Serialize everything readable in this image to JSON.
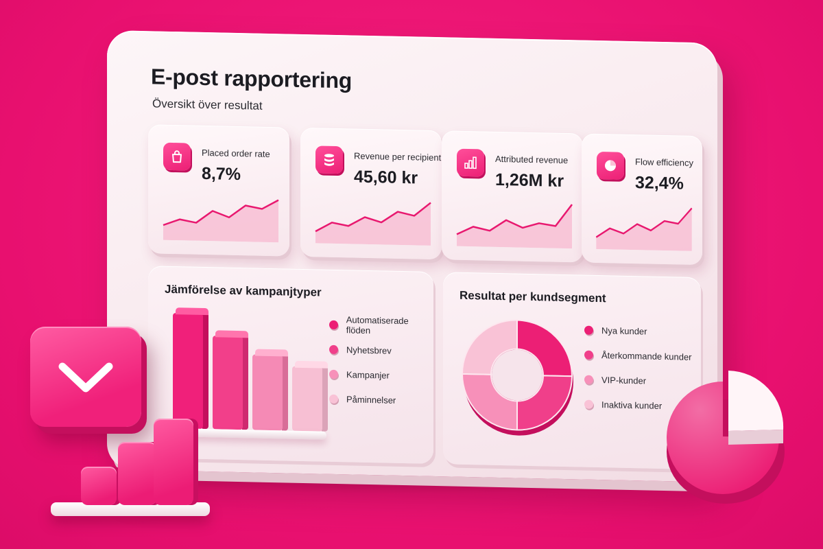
{
  "header": {
    "title": "E-post rapportering",
    "subtitle": "Översikt över resultat"
  },
  "kpis": [
    {
      "label": "Placed order rate",
      "value": "8,7%",
      "icon": "shopping-bag-icon",
      "trend": [
        2,
        3,
        2.5,
        4.5,
        3.5,
        5.5,
        5,
        6.5
      ]
    },
    {
      "label": "Revenue per recipient",
      "value": "45,60 kr",
      "icon": "database-icon",
      "trend": [
        1.5,
        3,
        2.5,
        4,
        3.2,
        5,
        4.4,
        6.6
      ]
    },
    {
      "label": "Attributed revenue",
      "value": "1,26M kr",
      "icon": "bar-chart-icon",
      "trend": [
        1.5,
        2.8,
        2.2,
        4,
        2.8,
        3.6,
        3.2,
        6.8
      ]
    },
    {
      "label": "Flow efficiency",
      "value": "32,4%",
      "icon": "pie-chart-icon",
      "trend": [
        1.5,
        3,
        2.2,
        3.8,
        2.8,
        4.4,
        4,
        6.6
      ]
    }
  ],
  "campaign_panel": {
    "title": "Jämförelse av kampanjtyper",
    "legend": [
      {
        "label": "Automatiserade flöden",
        "color": "#ec1f75"
      },
      {
        "label": "Nyhetsbrev",
        "color": "#f03f8a"
      },
      {
        "label": "Kampanjer",
        "color": "#f790b9"
      },
      {
        "label": "Påminnelser",
        "color": "#f9c2d6"
      }
    ]
  },
  "segment_panel": {
    "title": "Resultat per kundsegment",
    "legend": [
      {
        "label": "Nya kunder",
        "color": "#ec1f75"
      },
      {
        "label": "Återkommande kunder",
        "color": "#f03f8a"
      },
      {
        "label": "VIP-kunder",
        "color": "#f790b9"
      },
      {
        "label": "Inaktiva kunder",
        "color": "#f9c2d6"
      }
    ]
  },
  "chart_data": [
    {
      "type": "bar",
      "categories": [
        "Automatiserade flöden",
        "Nyhetsbrev",
        "Kampanjer",
        "Påminnelser"
      ],
      "values": [
        100,
        82,
        67,
        58
      ],
      "title": "Jämförelse av kampanjtyper",
      "xlabel": "",
      "ylabel": "",
      "ylim": [
        0,
        100
      ]
    },
    {
      "type": "pie",
      "categories": [
        "Nya kunder",
        "Återkommande kunder",
        "VIP-kunder",
        "Inaktiva kunder"
      ],
      "values": [
        25,
        25,
        25,
        25
      ],
      "title": "Resultat per kundsegment"
    }
  ],
  "colors": {
    "background": "#f0187a",
    "accent": "#ec1f75",
    "board": "#fdf6f8"
  }
}
